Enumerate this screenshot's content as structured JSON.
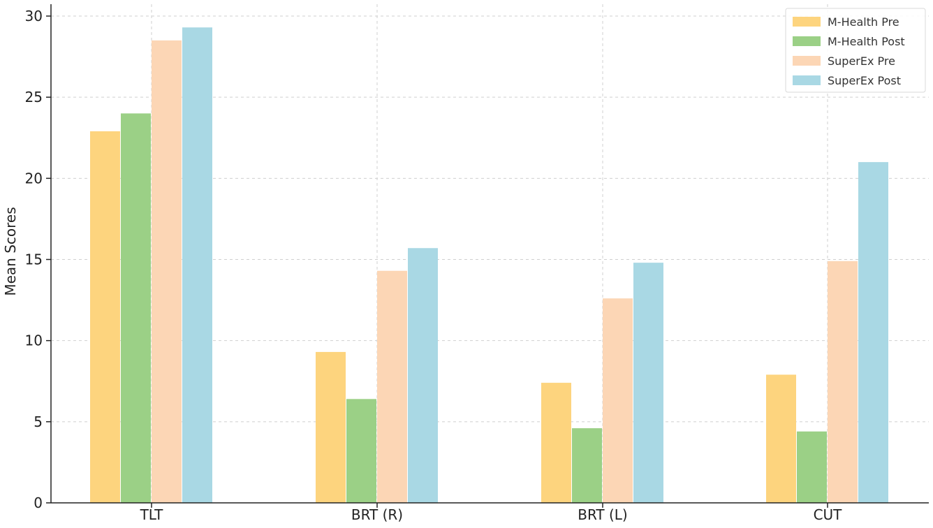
{
  "chart_data": {
    "type": "bar",
    "title": "",
    "xlabel": "",
    "ylabel": "Mean Scores",
    "ylim": [
      0,
      30
    ],
    "yticks": [
      0,
      5,
      10,
      15,
      20,
      25,
      30
    ],
    "categories": [
      "TLT",
      "BRT (R)",
      "BRT (L)",
      "CUT"
    ],
    "series": [
      {
        "name": "M-Health Pre",
        "color": "#fdd47e",
        "values": [
          22.9,
          9.3,
          7.4,
          7.9
        ]
      },
      {
        "name": "M-Health Post",
        "color": "#9bd086",
        "values": [
          24.0,
          6.4,
          4.6,
          4.4
        ]
      },
      {
        "name": "SuperEx Pre",
        "color": "#fcd6b5",
        "values": [
          28.5,
          14.3,
          12.6,
          14.9
        ]
      },
      {
        "name": "SuperEx Post",
        "color": "#a9d8e4",
        "values": [
          29.3,
          15.7,
          14.8,
          21.0
        ]
      }
    ],
    "grid": true,
    "legend_position": "top-right"
  }
}
